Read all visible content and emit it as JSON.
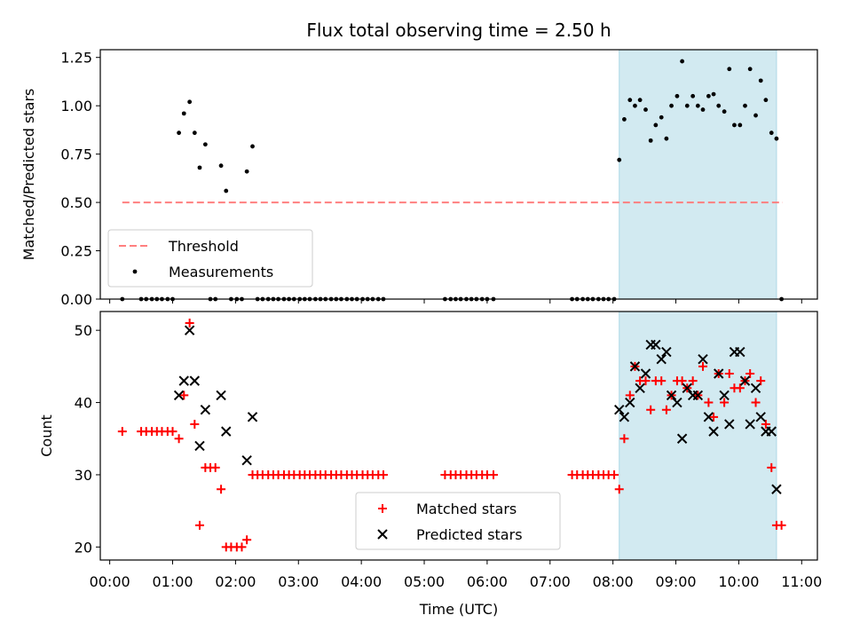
{
  "chart_data": {
    "type": "scatter",
    "title": "Flux total observing time = 2.50 h",
    "xlabel": "Time (UTC)",
    "x_unit": "hours UTC",
    "xlim": [
      -0.15,
      11.25
    ],
    "x_ticks": [
      0,
      1,
      2,
      3,
      4,
      5,
      6,
      7,
      8,
      9,
      10,
      11
    ],
    "x_tick_labels": [
      "00:00",
      "01:00",
      "02:00",
      "03:00",
      "04:00",
      "05:00",
      "06:00",
      "07:00",
      "08:00",
      "09:00",
      "10:00",
      "11:00"
    ],
    "shaded_interval": {
      "start": 8.1,
      "end": 10.6,
      "color": "#add8e6"
    },
    "panels": [
      {
        "ylabel": "Matched/Predicted stars",
        "ylim": [
          0,
          1.29
        ],
        "y_ticks": [
          0,
          0.25,
          0.5,
          0.75,
          1.0,
          1.25
        ],
        "y_tick_labels": [
          "0.00",
          "0.25",
          "0.50",
          "0.75",
          "1.00",
          "1.25"
        ],
        "legend_position": "lower-left",
        "series": [
          {
            "name": "Threshold",
            "style": "dashed-line",
            "color": "#ff7f7f",
            "x": [
              0.2,
              10.7
            ],
            "y": [
              0.5,
              0.5
            ]
          },
          {
            "name": "Measurements",
            "style": "dot",
            "color": "#000000",
            "x": [
              0.2,
              0.5,
              0.58,
              0.67,
              0.75,
              0.83,
              0.92,
              1.0,
              1.1,
              1.18,
              1.27,
              1.35,
              1.43,
              1.52,
              1.6,
              1.68,
              1.77,
              1.85,
              1.93,
              2.02,
              2.1,
              2.18,
              2.27,
              2.35,
              2.43,
              2.52,
              2.6,
              2.68,
              2.77,
              2.85,
              2.93,
              3.02,
              3.1,
              3.18,
              3.27,
              3.35,
              3.43,
              3.52,
              3.6,
              3.68,
              3.77,
              3.85,
              3.93,
              4.02,
              4.1,
              4.18,
              4.27,
              4.35,
              5.33,
              5.42,
              5.5,
              5.58,
              5.67,
              5.75,
              5.83,
              5.92,
              6.0,
              6.1,
              7.35,
              7.43,
              7.52,
              7.6,
              7.68,
              7.77,
              7.85,
              7.93,
              8.02,
              8.1,
              8.18,
              8.27,
              8.35,
              8.43,
              8.52,
              8.6,
              8.68,
              8.77,
              8.85,
              8.93,
              9.02,
              9.1,
              9.18,
              9.27,
              9.35,
              9.43,
              9.52,
              9.6,
              9.68,
              9.77,
              9.85,
              9.93,
              10.02,
              10.1,
              10.18,
              10.27,
              10.35,
              10.43,
              10.52,
              10.6,
              10.68
            ],
            "y": [
              0,
              0,
              0,
              0,
              0,
              0,
              0,
              0,
              0.86,
              0.96,
              1.02,
              0.86,
              0.68,
              0.8,
              0,
              0,
              0.69,
              0.56,
              0,
              0,
              0,
              0.66,
              0.79,
              0,
              0,
              0,
              0,
              0,
              0,
              0,
              0,
              0,
              0,
              0,
              0,
              0,
              0,
              0,
              0,
              0,
              0,
              0,
              0,
              0,
              0,
              0,
              0,
              0,
              0,
              0,
              0,
              0,
              0,
              0,
              0,
              0,
              0,
              0,
              0,
              0,
              0,
              0,
              0,
              0,
              0,
              0,
              0,
              0.72,
              0.93,
              1.03,
              1.0,
              1.03,
              0.98,
              0.82,
              0.9,
              0.94,
              0.83,
              1.0,
              1.05,
              1.23,
              1.0,
              1.05,
              1.0,
              0.98,
              1.05,
              1.06,
              1.0,
              0.97,
              1.19,
              0.9,
              0.9,
              1.0,
              1.19,
              0.95,
              1.13,
              1.03,
              0.86,
              0.83,
              0
            ]
          }
        ]
      },
      {
        "ylabel": "Count",
        "ylim": [
          18.2,
          52.6
        ],
        "y_ticks": [
          20,
          30,
          40,
          50
        ],
        "y_tick_labels": [
          "20",
          "30",
          "40",
          "50"
        ],
        "legend_position": "lower-center",
        "series": [
          {
            "name": "Matched stars",
            "style": "plus",
            "color": "#ff0000",
            "x": [
              0.2,
              0.5,
              0.58,
              0.67,
              0.75,
              0.83,
              0.92,
              1.0,
              1.1,
              1.18,
              1.27,
              1.35,
              1.43,
              1.52,
              1.6,
              1.68,
              1.77,
              1.85,
              1.93,
              2.02,
              2.1,
              2.18,
              2.27,
              2.35,
              2.43,
              2.52,
              2.6,
              2.68,
              2.77,
              2.85,
              2.93,
              3.02,
              3.1,
              3.18,
              3.27,
              3.35,
              3.43,
              3.52,
              3.6,
              3.68,
              3.77,
              3.85,
              3.93,
              4.02,
              4.1,
              4.18,
              4.27,
              4.35,
              5.33,
              5.42,
              5.5,
              5.58,
              5.67,
              5.75,
              5.83,
              5.92,
              6.0,
              6.1,
              7.35,
              7.43,
              7.52,
              7.6,
              7.68,
              7.77,
              7.85,
              7.93,
              8.02,
              8.1,
              8.18,
              8.27,
              8.35,
              8.43,
              8.52,
              8.6,
              8.68,
              8.77,
              8.85,
              8.93,
              9.02,
              9.1,
              9.18,
              9.27,
              9.35,
              9.43,
              9.52,
              9.6,
              9.68,
              9.77,
              9.85,
              9.93,
              10.02,
              10.1,
              10.18,
              10.27,
              10.35,
              10.43,
              10.52,
              10.6,
              10.68
            ],
            "y": [
              36,
              36,
              36,
              36,
              36,
              36,
              36,
              36,
              35,
              41,
              51,
              37,
              23,
              31,
              31,
              31,
              28,
              20,
              20,
              20,
              20,
              21,
              30,
              30,
              30,
              30,
              30,
              30,
              30,
              30,
              30,
              30,
              30,
              30,
              30,
              30,
              30,
              30,
              30,
              30,
              30,
              30,
              30,
              30,
              30,
              30,
              30,
              30,
              30,
              30,
              30,
              30,
              30,
              30,
              30,
              30,
              30,
              30,
              30,
              30,
              30,
              30,
              30,
              30,
              30,
              30,
              30,
              28,
              35,
              41,
              45,
              43,
              43,
              39,
              43,
              43,
              39,
              41,
              43,
              43,
              42,
              43,
              41,
              45,
              40,
              38,
              44,
              40,
              44,
              42,
              42,
              43,
              44,
              40,
              43,
              37,
              31,
              23,
              23
            ]
          },
          {
            "name": "Predicted stars",
            "style": "x",
            "color": "#000000",
            "x": [
              1.1,
              1.18,
              1.27,
              1.35,
              1.43,
              1.52,
              1.77,
              1.85,
              2.18,
              2.27,
              8.1,
              8.18,
              8.27,
              8.35,
              8.43,
              8.52,
              8.6,
              8.68,
              8.77,
              8.85,
              8.93,
              9.02,
              9.1,
              9.18,
              9.27,
              9.35,
              9.43,
              9.52,
              9.6,
              9.68,
              9.77,
              9.85,
              9.93,
              10.02,
              10.1,
              10.18,
              10.27,
              10.35,
              10.43,
              10.52,
              10.6
            ],
            "y": [
              41,
              43,
              50,
              43,
              34,
              39,
              41,
              36,
              32,
              38,
              39,
              38,
              40,
              45,
              42,
              44,
              48,
              48,
              46,
              47,
              41,
              40,
              35,
              42,
              41,
              41,
              46,
              38,
              36,
              44,
              41,
              37,
              47,
              47,
              43,
              37,
              42,
              38,
              36,
              36,
              28
            ]
          }
        ]
      }
    ]
  }
}
